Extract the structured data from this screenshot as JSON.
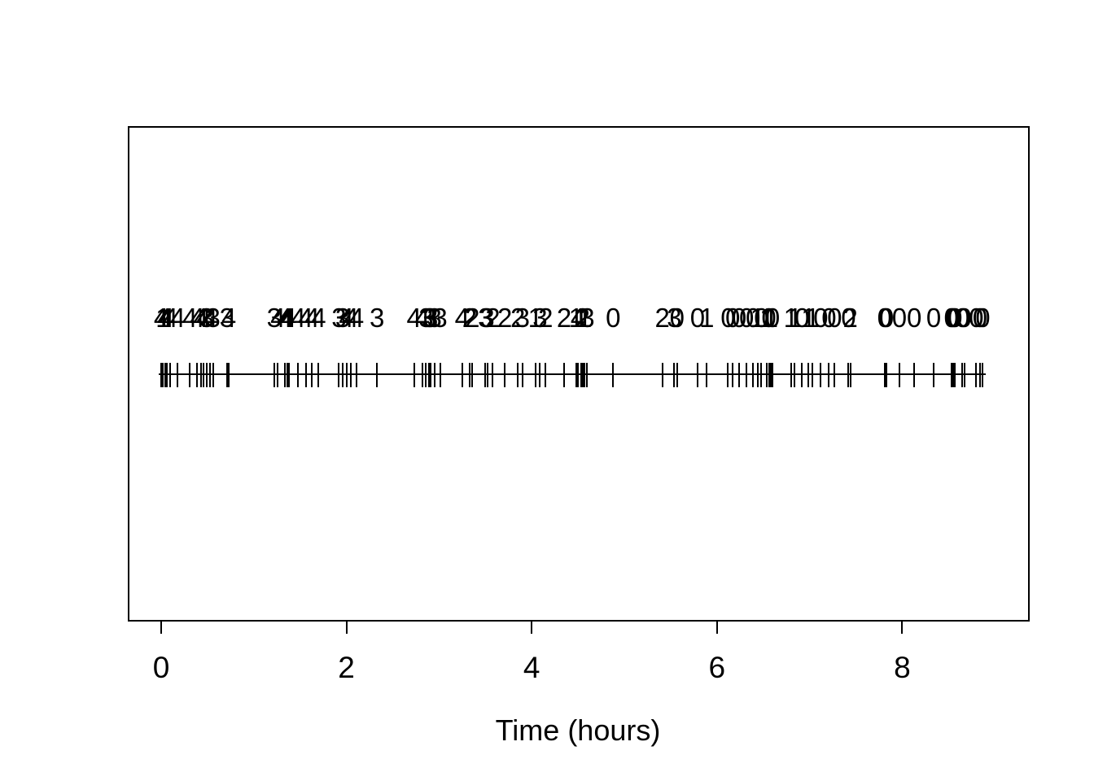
{
  "figure": {
    "background_color": "#ffffff",
    "ink_color": "#000000"
  },
  "chart_data": {
    "type": "scatter",
    "subtype": "rug-event-plot-with-state-labels",
    "title": "",
    "xlabel": "Time (hours)",
    "ylabel": "",
    "xlim": [
      0,
      9.4
    ],
    "x_axis_ticks": [
      0,
      2,
      4,
      6,
      8
    ],
    "x_axis_tick_labels": [
      "0",
      "2",
      "4",
      "6",
      "8"
    ],
    "grid": "off",
    "legend": "none",
    "events": [
      {
        "t": 0.0,
        "label": "4"
      },
      {
        "t": 0.02,
        "label": "1"
      },
      {
        "t": 0.04,
        "label": "4"
      },
      {
        "t": 0.06,
        "label": "4"
      },
      {
        "t": 0.1,
        "label": "4"
      },
      {
        "t": 0.18,
        "label": "4"
      },
      {
        "t": 0.31,
        "label": "4"
      },
      {
        "t": 0.39,
        "label": "4"
      },
      {
        "t": 0.43,
        "label": "4"
      },
      {
        "t": 0.46,
        "label": "4"
      },
      {
        "t": 0.49,
        "label": "3"
      },
      {
        "t": 0.53,
        "label": "4"
      },
      {
        "t": 0.56,
        "label": "3"
      },
      {
        "t": 0.71,
        "label": "3"
      },
      {
        "t": 0.73,
        "label": "4"
      },
      {
        "t": 1.22,
        "label": "3"
      },
      {
        "t": 1.26,
        "label": "4"
      },
      {
        "t": 1.34,
        "label": "4"
      },
      {
        "t": 1.36,
        "label": "4"
      },
      {
        "t": 1.38,
        "label": "4"
      },
      {
        "t": 1.48,
        "label": "4"
      },
      {
        "t": 1.56,
        "label": "4"
      },
      {
        "t": 1.63,
        "label": "4"
      },
      {
        "t": 1.7,
        "label": "4"
      },
      {
        "t": 1.92,
        "label": "3"
      },
      {
        "t": 1.96,
        "label": "3"
      },
      {
        "t": 2.0,
        "label": "4"
      },
      {
        "t": 2.05,
        "label": "4"
      },
      {
        "t": 2.11,
        "label": "4"
      },
      {
        "t": 2.33,
        "label": "3"
      },
      {
        "t": 2.73,
        "label": "4"
      },
      {
        "t": 2.82,
        "label": "4"
      },
      {
        "t": 2.86,
        "label": "3"
      },
      {
        "t": 2.89,
        "label": "3"
      },
      {
        "t": 2.91,
        "label": "3"
      },
      {
        "t": 2.95,
        "label": "3"
      },
      {
        "t": 3.01,
        "label": "3"
      },
      {
        "t": 3.25,
        "label": "4"
      },
      {
        "t": 3.33,
        "label": "2"
      },
      {
        "t": 3.36,
        "label": "2"
      },
      {
        "t": 3.5,
        "label": "3"
      },
      {
        "t": 3.52,
        "label": "3"
      },
      {
        "t": 3.58,
        "label": "2"
      },
      {
        "t": 3.71,
        "label": "2"
      },
      {
        "t": 3.85,
        "label": "2"
      },
      {
        "t": 3.9,
        "label": "3"
      },
      {
        "t": 4.04,
        "label": "1"
      },
      {
        "t": 4.09,
        "label": "3"
      },
      {
        "t": 4.15,
        "label": "2"
      },
      {
        "t": 4.35,
        "label": "2"
      },
      {
        "t": 4.48,
        "label": "1"
      },
      {
        "t": 4.5,
        "label": "4"
      },
      {
        "t": 4.53,
        "label": "1"
      },
      {
        "t": 4.55,
        "label": "2"
      },
      {
        "t": 4.57,
        "label": "1"
      },
      {
        "t": 4.6,
        "label": "3"
      },
      {
        "t": 4.88,
        "label": "0"
      },
      {
        "t": 5.41,
        "label": "2"
      },
      {
        "t": 5.54,
        "label": "3"
      },
      {
        "t": 5.57,
        "label": "0"
      },
      {
        "t": 5.79,
        "label": "0"
      },
      {
        "t": 5.89,
        "label": "1"
      },
      {
        "t": 6.12,
        "label": "0"
      },
      {
        "t": 6.17,
        "label": "0"
      },
      {
        "t": 6.24,
        "label": "0"
      },
      {
        "t": 6.32,
        "label": "0"
      },
      {
        "t": 6.39,
        "label": "0"
      },
      {
        "t": 6.44,
        "label": "1"
      },
      {
        "t": 6.48,
        "label": "0"
      },
      {
        "t": 6.54,
        "label": "1"
      },
      {
        "t": 6.56,
        "label": "0"
      },
      {
        "t": 6.58,
        "label": "1"
      },
      {
        "t": 6.6,
        "label": "0"
      },
      {
        "t": 6.8,
        "label": "1"
      },
      {
        "t": 6.84,
        "label": "1"
      },
      {
        "t": 6.92,
        "label": "0"
      },
      {
        "t": 6.99,
        "label": "1"
      },
      {
        "t": 7.03,
        "label": "1"
      },
      {
        "t": 7.12,
        "label": "0"
      },
      {
        "t": 7.21,
        "label": "0"
      },
      {
        "t": 7.27,
        "label": "0"
      },
      {
        "t": 7.42,
        "label": "0"
      },
      {
        "t": 7.44,
        "label": "2"
      },
      {
        "t": 7.81,
        "label": "0"
      },
      {
        "t": 7.83,
        "label": "0"
      },
      {
        "t": 7.97,
        "label": "0"
      },
      {
        "t": 8.13,
        "label": "0"
      },
      {
        "t": 8.34,
        "label": "0"
      },
      {
        "t": 8.53,
        "label": "0"
      },
      {
        "t": 8.55,
        "label": "0"
      },
      {
        "t": 8.57,
        "label": "0"
      },
      {
        "t": 8.65,
        "label": "0"
      },
      {
        "t": 8.67,
        "label": "0"
      },
      {
        "t": 8.8,
        "label": "0"
      },
      {
        "t": 8.84,
        "label": "0"
      },
      {
        "t": 8.87,
        "label": "0"
      }
    ]
  }
}
